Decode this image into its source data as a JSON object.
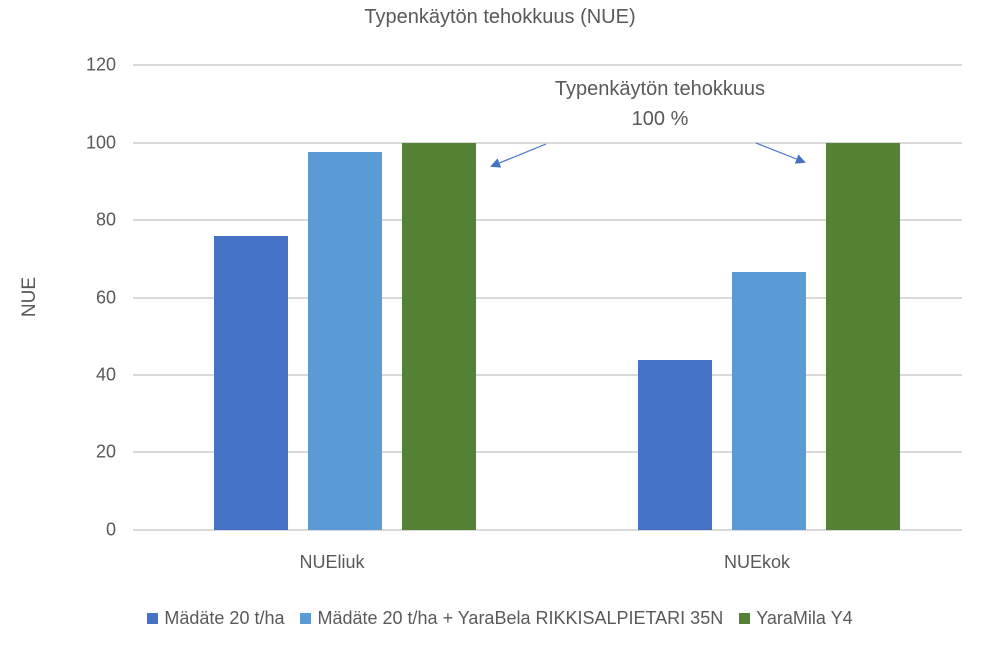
{
  "chart_data": {
    "type": "bar",
    "title": "Typenkäytön tehokkuus (NUE)",
    "xlabel": "",
    "ylabel": "NUE",
    "ylim": [
      0,
      120
    ],
    "yticks": [
      0,
      20,
      40,
      60,
      80,
      100,
      120
    ],
    "grid": true,
    "legend_position": "bottom",
    "categories": [
      "NUEliuk",
      "NUEkok"
    ],
    "series": [
      {
        "name": "Mädäte 20 t/ha",
        "color": "#4472C4",
        "values": [
          76,
          44
        ]
      },
      {
        "name": "Mädäte 20 t/ha + YaraBela RIKKISALPIETARI 35N",
        "color": "#5B9BD5",
        "values": [
          97.5,
          66.5
        ]
      },
      {
        "name": "YaraMila Y4",
        "color": "#548235",
        "values": [
          100,
          100
        ]
      }
    ],
    "annotations": [
      {
        "text": "Typenkäytön tehokkuus 100 %",
        "line1": "Typenkäytön tehokkuus",
        "line2": "100 %",
        "arrows_to": [
          "NUEliuk YaraMila Y4",
          "NUEkok YaraMila Y4"
        ]
      }
    ]
  },
  "title": "Typenkäytön tehokkuus (NUE)",
  "ylabel": "NUE",
  "yticks": [
    "120",
    "100",
    "80",
    "60",
    "40",
    "20",
    "0"
  ],
  "xticks": [
    "NUEliuk",
    "NUEkok"
  ],
  "annotation": {
    "line1": "Typenkäytön tehokkuus",
    "line2": "100 %"
  },
  "legend": [
    {
      "label": "Mädäte 20 t/ha",
      "color": "#4472C4"
    },
    {
      "label": "Mädäte 20 t/ha + YaraBela RIKKISALPIETARI 35N",
      "color": "#5B9BD5"
    },
    {
      "label": "YaraMila Y4",
      "color": "#548235"
    }
  ]
}
